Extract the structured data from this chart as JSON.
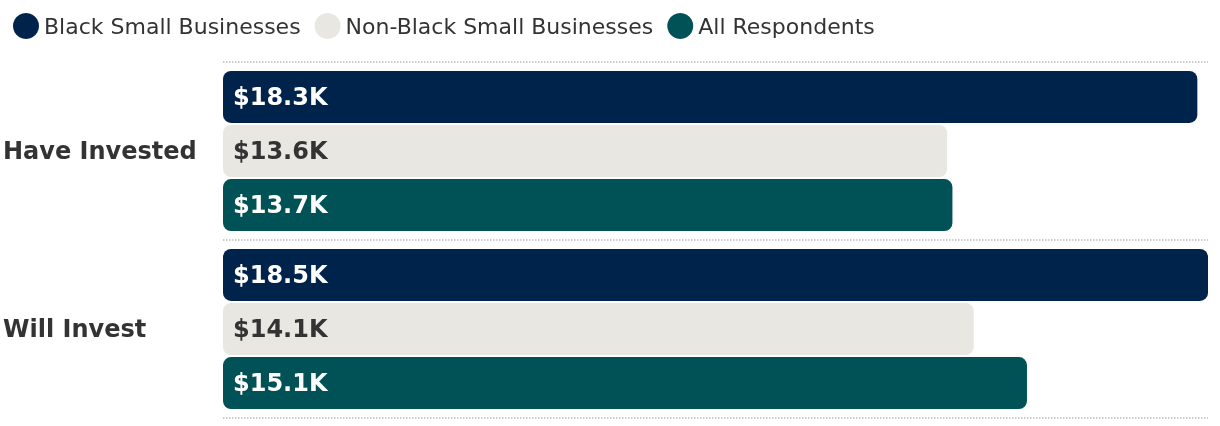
{
  "chart_data": {
    "type": "bar",
    "orientation": "horizontal",
    "categories": [
      "Have Invested",
      "Will Invest"
    ],
    "series": [
      {
        "name": "Black Small Businesses",
        "color": "#00234b",
        "values": [
          18.3,
          18.5
        ],
        "value_labels": [
          "$18.3K",
          "$18.5K"
        ]
      },
      {
        "name": "Non-Black Small Businesses",
        "color": "#e8e7e1",
        "values": [
          13.6,
          14.1
        ],
        "value_labels": [
          "$13.6K",
          "$14.1K"
        ]
      },
      {
        "name": "All Respondents",
        "color": "#005257",
        "values": [
          13.7,
          15.1
        ],
        "value_labels": [
          "$13.7K",
          "$15.1K"
        ]
      }
    ],
    "xlim": [
      0,
      18.5
    ],
    "tick_labels": "y",
    "grid": "y",
    "legend": "top left"
  }
}
